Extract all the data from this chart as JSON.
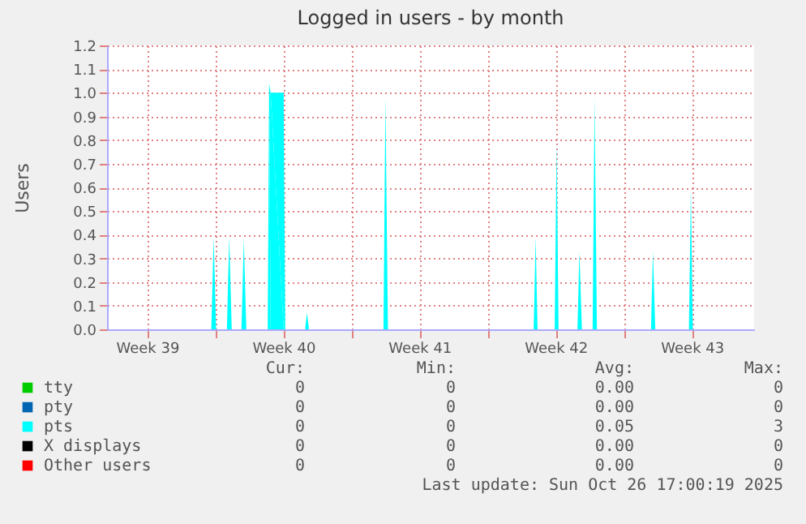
{
  "chart_data": {
    "type": "area",
    "title": "Logged in users - by month",
    "ylabel": "Users",
    "xlim": [
      "2025-09-23T10:34",
      "2025-10-26T16:48"
    ],
    "xticks": [
      {
        "value": "2025-09-25T12:00",
        "label": "Week 39"
      },
      {
        "value": "2025-09-29",
        "label": null
      },
      {
        "value": "2025-10-02T12:00",
        "label": "Week 40"
      },
      {
        "value": "2025-10-06",
        "label": null
      },
      {
        "value": "2025-10-09T12:00",
        "label": "Week 41"
      },
      {
        "value": "2025-10-13",
        "label": null
      },
      {
        "value": "2025-10-16T12:00",
        "label": "Week 42"
      },
      {
        "value": "2025-10-20",
        "label": null
      },
      {
        "value": "2025-10-23T12:00",
        "label": "Week 43"
      }
    ],
    "ylim": [
      0,
      1.2
    ],
    "yticks": [
      {
        "value": 0,
        "label": "0.0"
      },
      0.1,
      0.2,
      0.3,
      0.4,
      0.5,
      0.6,
      0.7,
      0.8,
      0.9,
      {
        "value": 1,
        "label": "1.0"
      },
      1.1,
      1.2
    ],
    "grid": true,
    "legend": "bottom left",
    "series": [
      {
        "name": "tty",
        "color": "#00cc00"
      },
      {
        "name": "pty",
        "color": "#0066b3"
      },
      {
        "name": "pts",
        "color": "#00ffff",
        "x": [
          "2025-09-23T12:00",
          "2025-09-28T19:12",
          "2025-09-28T22:05",
          "2025-09-29T01:12",
          "2025-09-29T14:24",
          "2025-09-29T17:17",
          "2025-09-29T20:24",
          "2025-09-30T08:24",
          "2025-09-30T11:17",
          "2025-09-30T14:24",
          "2025-10-01T16:48",
          "2025-10-01T18:29",
          "2025-10-01T20:24",
          "2025-10-02T12:29",
          "2025-10-02T14:24",
          "2025-10-03T14:53",
          "2025-10-03T17:17",
          "2025-10-03T19:41",
          "2025-10-07T15:36",
          "2025-10-07T18:00",
          "2025-10-07T21:07",
          "2025-10-15T08:53",
          "2025-10-15T11:17",
          "2025-10-15T13:41",
          "2025-10-16T10:48",
          "2025-10-16T13:12",
          "2025-10-16T15:36",
          "2025-10-17T14:53",
          "2025-10-17T17:17",
          "2025-10-17T20:24",
          "2025-10-18T09:36",
          "2025-10-18T12:00",
          "2025-10-18T14:53",
          "2025-10-21T09:36",
          "2025-10-21T12:00",
          "2025-10-21T14:53",
          "2025-10-23T08:24",
          "2025-10-23T10:48",
          "2025-10-23T13:12",
          "2025-10-26T16:48"
        ],
        "values": [
          0,
          0,
          0.39,
          0,
          0,
          0.39,
          0,
          0,
          0.38,
          0,
          0,
          1.04,
          1.0,
          1.0,
          0,
          0,
          0.07,
          0,
          0,
          0.98,
          0,
          0,
          0.39,
          0,
          0,
          0.79,
          0,
          0,
          0.33,
          0,
          0,
          0.98,
          0,
          0,
          0.33,
          0,
          0,
          0.59,
          0,
          0
        ]
      },
      {
        "name": "X displays",
        "color": "#000000"
      },
      {
        "name": "Other users",
        "color": "#ff0000"
      }
    ],
    "annotations": [
      "Cur:",
      "Min:",
      "Avg:",
      "Max:",
      "0",
      "0",
      "0.00",
      "0",
      "0",
      "0",
      "0.00",
      "0",
      "0",
      "0",
      "0.05",
      "3",
      "0",
      "0",
      "0.00",
      "0",
      "0",
      "0",
      "0.00",
      "0",
      "Last update: Sun Oct 26 17:00:19 2025"
    ]
  }
}
